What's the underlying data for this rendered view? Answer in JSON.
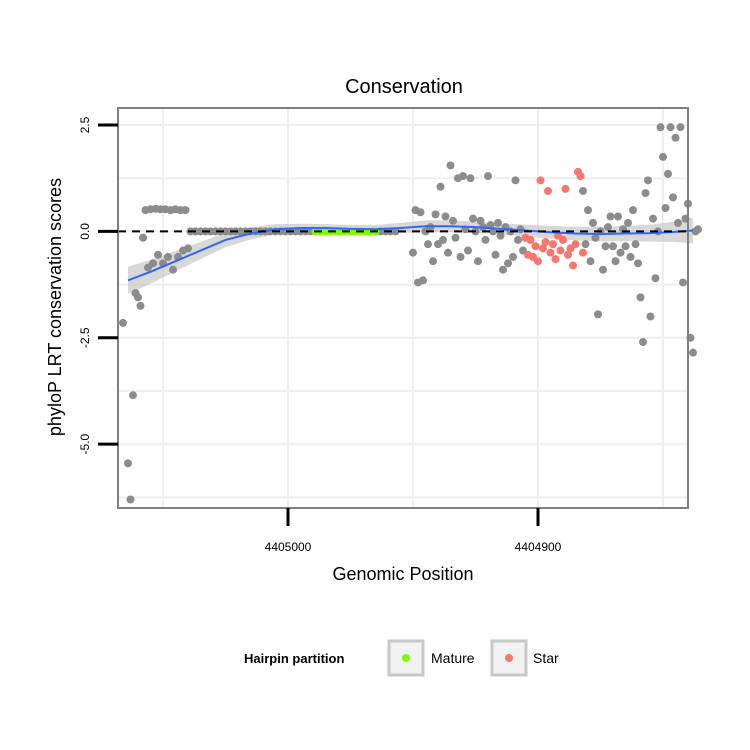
{
  "chart_data": {
    "type": "scatter",
    "title": "Conservation",
    "xlabel": "Genomic Position",
    "ylabel": "phyloP LRT conservation scores",
    "x_reversed": true,
    "xlim": [
      4405068,
      4404840
    ],
    "ylim": [
      -6.5,
      2.9
    ],
    "x_ticks": [
      4405000,
      4404900
    ],
    "x_tick_labels": [
      "4405000",
      "4404900"
    ],
    "y_ticks": [
      2.5,
      0.0,
      -2.5,
      -5.0
    ],
    "y_tick_labels": [
      "2.5",
      "0.0",
      "-2.5",
      "-5.0"
    ],
    "reference_line": {
      "y": 0.0,
      "style": "dashed"
    },
    "grid": true,
    "colors": {
      "other": "#8c8c8c",
      "mature": "#7cfc00",
      "star": "#f8766d",
      "smooth": "#3366ff",
      "ribbon": "#c8c8c8",
      "panel_border": "#7f7f7f",
      "grid": "#efefef"
    },
    "legend": {
      "title": "Hairpin partition",
      "position": "bottom",
      "entries": [
        {
          "label": "Mature",
          "color": "#7cfc00"
        },
        {
          "label": "Star",
          "color": "#f8766d"
        }
      ]
    },
    "series": [
      {
        "group": "other",
        "points": [
          [
            4405066,
            -2.15
          ],
          [
            4405064,
            -5.45
          ],
          [
            4405063,
            -6.3
          ],
          [
            4405062,
            -3.85
          ],
          [
            4405061,
            -1.45
          ],
          [
            4405060,
            -1.55
          ],
          [
            4405059,
            -1.75
          ],
          [
            4405058,
            -0.15
          ],
          [
            4405057,
            0.5
          ],
          [
            4405056,
            -0.85
          ],
          [
            4405055,
            0.52
          ],
          [
            4405054,
            -0.75
          ],
          [
            4405053,
            0.53
          ],
          [
            4405052,
            -0.55
          ],
          [
            4405051,
            0.52
          ],
          [
            4405050,
            -0.75
          ],
          [
            4405049,
            0.52
          ],
          [
            4405048,
            -0.6
          ],
          [
            4405047,
            0.5
          ],
          [
            4405046,
            -0.9
          ],
          [
            4405045,
            0.52
          ],
          [
            4405044,
            -0.6
          ],
          [
            4405043,
            0.5
          ],
          [
            4405042,
            -0.45
          ],
          [
            4405041,
            0.5
          ],
          [
            4405040,
            -0.4
          ],
          [
            4405039,
            0.0
          ],
          [
            4405037,
            0.0
          ],
          [
            4405035,
            0.0
          ],
          [
            4405033,
            0.0
          ],
          [
            4405031,
            0.0
          ],
          [
            4405029,
            0.0
          ],
          [
            4405027,
            0.0
          ],
          [
            4405025,
            0.0
          ],
          [
            4405023,
            0.0
          ],
          [
            4405021,
            0.0
          ],
          [
            4405019,
            0.0
          ],
          [
            4405017,
            0.0
          ],
          [
            4405015,
            0.0
          ],
          [
            4405013,
            0.0
          ],
          [
            4405011,
            0.0
          ],
          [
            4405009,
            0.0
          ],
          [
            4405007,
            0.0
          ],
          [
            4405005,
            0.0
          ],
          [
            4405003,
            0.0
          ],
          [
            4405001,
            0.0
          ],
          [
            4404999,
            0.0
          ],
          [
            4404997,
            0.0
          ],
          [
            4404995,
            0.0
          ],
          [
            4404993,
            0.0
          ],
          [
            4404991,
            0.0
          ],
          [
            4404963,
            0.0
          ],
          [
            4404961,
            0.0
          ],
          [
            4404959,
            0.0
          ],
          [
            4404957,
            0.0
          ],
          [
            4404950,
            -0.5
          ],
          [
            4404949,
            0.5
          ],
          [
            4404948,
            -1.2
          ],
          [
            4404947,
            0.45
          ],
          [
            4404946,
            -1.15
          ],
          [
            4404945,
            0.0
          ],
          [
            4404944,
            -0.3
          ],
          [
            4404943,
            0.1
          ],
          [
            4404942,
            -0.7
          ],
          [
            4404941,
            0.4
          ],
          [
            4404940,
            -0.3
          ],
          [
            4404939,
            1.05
          ],
          [
            4404938,
            -0.2
          ],
          [
            4404937,
            0.35
          ],
          [
            4404936,
            -0.5
          ],
          [
            4404935,
            1.55
          ],
          [
            4404934,
            0.25
          ],
          [
            4404933,
            -0.15
          ],
          [
            4404932,
            1.25
          ],
          [
            4404931,
            -0.6
          ],
          [
            4404930,
            1.3
          ],
          [
            4404929,
            0.05
          ],
          [
            4404928,
            -0.45
          ],
          [
            4404927,
            1.25
          ],
          [
            4404926,
            0.3
          ],
          [
            4404925,
            0.0
          ],
          [
            4404924,
            -0.7
          ],
          [
            4404923,
            0.25
          ],
          [
            4404922,
            0.1
          ],
          [
            4404921,
            -0.2
          ],
          [
            4404920,
            1.3
          ],
          [
            4404919,
            0.15
          ],
          [
            4404918,
            0.0
          ],
          [
            4404917,
            -0.55
          ],
          [
            4404916,
            0.2
          ],
          [
            4404915,
            -0.1
          ],
          [
            4404914,
            -0.9
          ],
          [
            4404913,
            0.1
          ],
          [
            4404912,
            -0.75
          ],
          [
            4404911,
            0.0
          ],
          [
            4404910,
            -0.6
          ],
          [
            4404909,
            1.2
          ],
          [
            4404908,
            -0.2
          ],
          [
            4404907,
            0.05
          ],
          [
            4404906,
            -0.45
          ],
          [
            4404882,
            0.95
          ],
          [
            4404881,
            -0.3
          ],
          [
            4404880,
            0.5
          ],
          [
            4404879,
            -0.7
          ],
          [
            4404878,
            0.2
          ],
          [
            4404877,
            -0.15
          ],
          [
            4404876,
            -1.95
          ],
          [
            4404875,
            0.0
          ],
          [
            4404874,
            -0.9
          ],
          [
            4404873,
            -0.35
          ],
          [
            4404872,
            0.1
          ],
          [
            4404871,
            0.35
          ],
          [
            4404870,
            -0.35
          ],
          [
            4404869,
            -0.7
          ],
          [
            4404868,
            0.35
          ],
          [
            4404867,
            -0.5
          ],
          [
            4404866,
            0.05
          ],
          [
            4404865,
            -0.35
          ],
          [
            4404864,
            0.2
          ],
          [
            4404863,
            -0.6
          ],
          [
            4404862,
            0.5
          ],
          [
            4404861,
            -0.3
          ],
          [
            4404860,
            -0.75
          ],
          [
            4404859,
            -1.55
          ],
          [
            4404858,
            -2.6
          ],
          [
            4404857,
            0.9
          ],
          [
            4404856,
            1.2
          ],
          [
            4404855,
            -2.0
          ],
          [
            4404854,
            0.3
          ],
          [
            4404853,
            -1.1
          ],
          [
            4404852,
            0.0
          ],
          [
            4404851,
            2.45
          ],
          [
            4404850,
            1.75
          ],
          [
            4404849,
            0.55
          ],
          [
            4404848,
            1.35
          ],
          [
            4404847,
            2.45
          ],
          [
            4404846,
            0.8
          ],
          [
            4404845,
            2.2
          ],
          [
            4404844,
            0.2
          ],
          [
            4404843,
            2.45
          ],
          [
            4404842,
            -1.2
          ],
          [
            4404841,
            0.3
          ],
          [
            4404840,
            0.65
          ],
          [
            4404839,
            -2.5
          ],
          [
            4404838,
            -2.85
          ],
          [
            4404837,
            0.0
          ],
          [
            4404836,
            0.05
          ]
        ]
      },
      {
        "group": "mature",
        "points": [
          [
            4404989,
            0.0
          ],
          [
            4404987,
            0.0
          ],
          [
            4404985,
            0.0
          ],
          [
            4404983,
            0.0
          ],
          [
            4404981,
            0.0
          ],
          [
            4404979,
            0.0
          ],
          [
            4404977,
            0.0
          ],
          [
            4404975,
            0.0
          ],
          [
            4404973,
            0.0
          ],
          [
            4404971,
            0.0
          ],
          [
            4404969,
            0.0
          ],
          [
            4404967,
            0.0
          ],
          [
            4404965,
            0.0
          ]
        ]
      },
      {
        "group": "star",
        "points": [
          [
            4404905,
            -0.15
          ],
          [
            4404904,
            -0.55
          ],
          [
            4404903,
            -0.2
          ],
          [
            4404902,
            -0.6
          ],
          [
            4404901,
            -0.35
          ],
          [
            4404900,
            -0.7
          ],
          [
            4404899,
            1.2
          ],
          [
            4404898,
            -0.4
          ],
          [
            4404897,
            -0.25
          ],
          [
            4404896,
            0.95
          ],
          [
            4404895,
            -0.5
          ],
          [
            4404894,
            -0.3
          ],
          [
            4404893,
            -0.65
          ],
          [
            4404892,
            -0.1
          ],
          [
            4404891,
            -0.45
          ],
          [
            4404890,
            -0.2
          ],
          [
            4404889,
            1.0
          ],
          [
            4404888,
            -0.55
          ],
          [
            4404887,
            -0.4
          ],
          [
            4404886,
            -0.8
          ],
          [
            4404885,
            -0.3
          ],
          [
            4404884,
            1.4
          ],
          [
            4404883,
            1.3
          ],
          [
            4404882,
            -0.5
          ]
        ]
      }
    ],
    "smooth": {
      "x": [
        4405064,
        4405055,
        4405045,
        4405035,
        4405025,
        4405015,
        4405005,
        4404995,
        4404985,
        4404975,
        4404965,
        4404955,
        4404945,
        4404935,
        4404925,
        4404915,
        4404905,
        4404895,
        4404885,
        4404875,
        4404865,
        4404855,
        4404845,
        4404838
      ],
      "y": [
        -1.15,
        -0.95,
        -0.7,
        -0.45,
        -0.2,
        -0.05,
        0.05,
        0.08,
        0.08,
        0.06,
        0.05,
        0.08,
        0.12,
        0.12,
        0.1,
        0.06,
        0.02,
        -0.02,
        -0.05,
        -0.06,
        -0.05,
        -0.04,
        -0.01,
        0.02
      ],
      "se": [
        0.32,
        0.28,
        0.24,
        0.2,
        0.17,
        0.14,
        0.12,
        0.1,
        0.09,
        0.09,
        0.1,
        0.12,
        0.14,
        0.14,
        0.13,
        0.13,
        0.14,
        0.15,
        0.16,
        0.17,
        0.18,
        0.2,
        0.24,
        0.3
      ]
    }
  }
}
